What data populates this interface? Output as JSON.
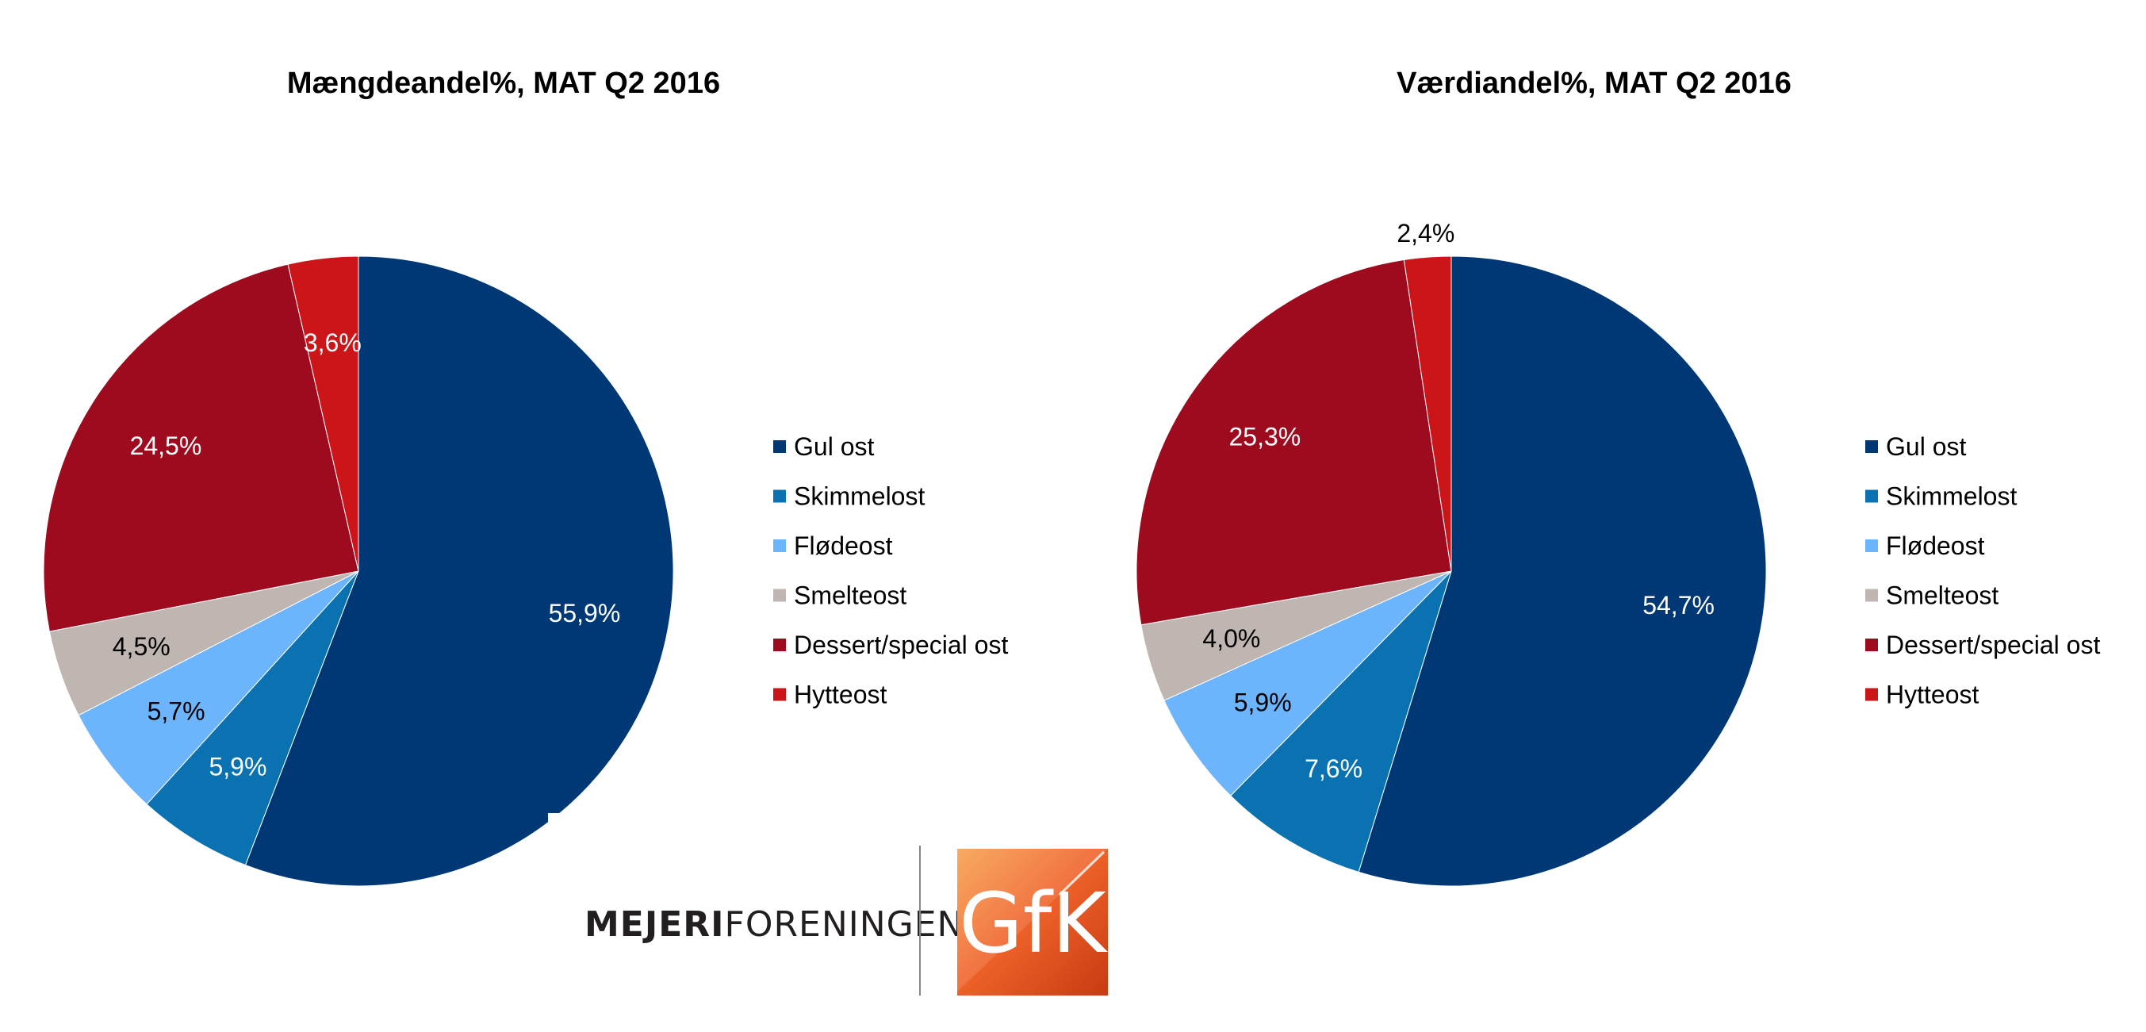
{
  "chart_data": [
    {
      "type": "pie",
      "title": "Mængdeandel%, MAT Q2 2016",
      "slices": [
        {
          "label": "Gul ost",
          "value": 55.9,
          "text": "55,9%",
          "color": "#003876",
          "label_color": "#ffffff"
        },
        {
          "label": "Skimmelost",
          "value": 5.9,
          "text": "5,9%",
          "color": "#0a72b1",
          "label_color": "#ffffff"
        },
        {
          "label": "Flødeost",
          "value": 5.7,
          "text": "5,7%",
          "color": "#6cb4fb",
          "label_color": "#000000"
        },
        {
          "label": "Smelteost",
          "value": 4.5,
          "text": "4,5%",
          "color": "#c0b6b1",
          "label_color": "#000000"
        },
        {
          "label": "Dessert/special ost",
          "value": 24.5,
          "text": "24,5%",
          "color": "#9e0b1e",
          "label_color": "#ffffff"
        },
        {
          "label": "Hytteost",
          "value": 3.6,
          "text": "3,6%",
          "color": "#cb1519",
          "label_color": "#ffffff"
        }
      ],
      "legend": [
        "Gul ost",
        "Skimmelost",
        "Flødeost",
        "Smelteost",
        "Dessert/special ost",
        "Hytteost"
      ],
      "legend_position": "right"
    },
    {
      "type": "pie",
      "title": "Værdiandel%, MAT Q2 2016",
      "slices": [
        {
          "label": "Gul ost",
          "value": 54.7,
          "text": "54,7%",
          "color": "#003876",
          "label_color": "#ffffff"
        },
        {
          "label": "Skimmelost",
          "value": 7.6,
          "text": "7,6%",
          "color": "#0a72b1",
          "label_color": "#ffffff"
        },
        {
          "label": "Flødeost",
          "value": 5.9,
          "text": "5,9%",
          "color": "#6cb4fb",
          "label_color": "#000000"
        },
        {
          "label": "Smelteost",
          "value": 4.0,
          "text": "4,0%",
          "color": "#c0b6b1",
          "label_color": "#000000"
        },
        {
          "label": "Dessert/special ost",
          "value": 25.3,
          "text": "25,3%",
          "color": "#9e0b1e",
          "label_color": "#ffffff"
        },
        {
          "label": "Hytteost",
          "value": 2.4,
          "text": "2,4%",
          "color": "#cb1519",
          "label_color": "#000000",
          "label_outside": true
        }
      ],
      "legend": [
        "Gul ost",
        "Skimmelost",
        "Flødeost",
        "Smelteost",
        "Dessert/special ost",
        "Hytteost"
      ],
      "legend_position": "right"
    }
  ],
  "logos": {
    "mejeri": "MEJERIFORENINGEN",
    "mejeri_bold": "MEJERI",
    "mejeri_light": "FORENINGEN",
    "gfk": "GfK"
  }
}
